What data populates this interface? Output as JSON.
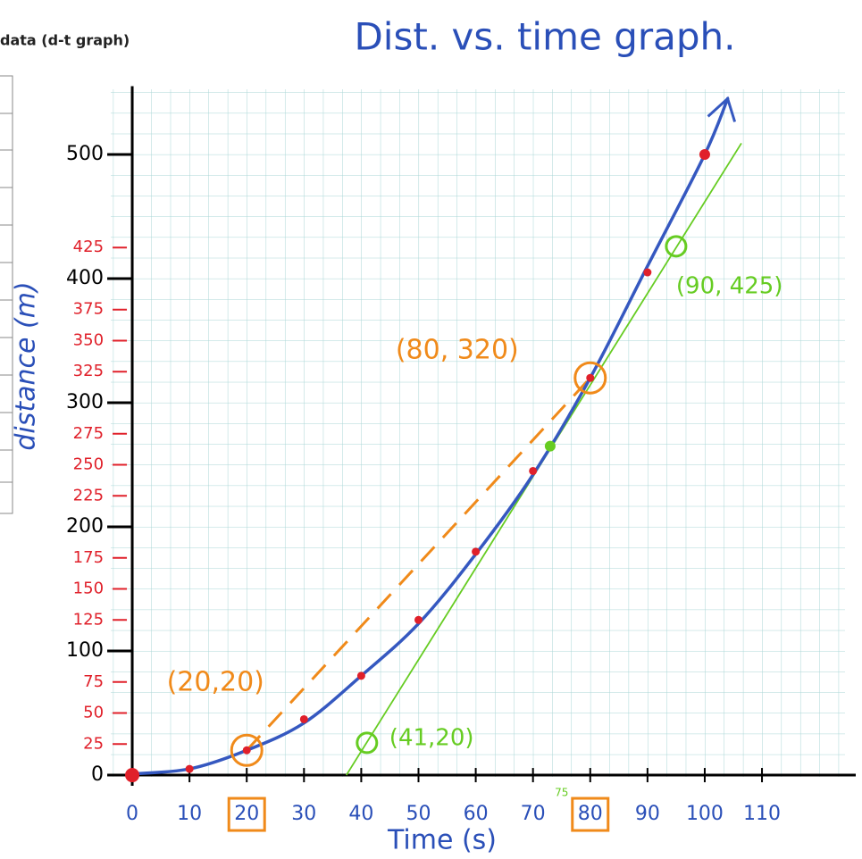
{
  "header": "data (d-t graph)",
  "chart_data": {
    "type": "scatter",
    "title": "Dist. vs. time graph.",
    "x_label": "Time (s)",
    "y_label": "distance (m)",
    "x": [
      0,
      10,
      20,
      30,
      40,
      50,
      60,
      70,
      80,
      90,
      100
    ],
    "values": [
      0,
      5,
      20,
      45,
      80,
      125,
      180,
      245,
      320,
      405,
      500
    ],
    "color": "#e0202a",
    "xlim": [
      -4,
      127
    ],
    "ylim": [
      -5,
      555
    ],
    "xticks": [
      0,
      10,
      20,
      30,
      40,
      50,
      60,
      70,
      80,
      90,
      100,
      110
    ],
    "boxed_xticks": [
      20,
      80
    ],
    "yticks": [
      0,
      100,
      200,
      300,
      400,
      500
    ],
    "y_minor_ticks": [
      25,
      50,
      75,
      125,
      150,
      175,
      225,
      250,
      275,
      325,
      350,
      375,
      425
    ],
    "minor_tick_color": "#e0202a",
    "grid": true,
    "curve": {
      "color": "#3558c0",
      "x": [
        0,
        10,
        20,
        30,
        40,
        50,
        60,
        70,
        80,
        90,
        100,
        104
      ],
      "values": [
        1,
        5,
        20,
        42,
        80,
        122,
        178,
        242,
        320,
        410,
        500,
        545
      ]
    },
    "secant": {
      "color": "#f08a1a",
      "x": [
        20,
        80
      ],
      "values": [
        20,
        320
      ]
    },
    "tangent": {
      "color": "#66cc22",
      "x": [
        37.4,
        106.4
      ],
      "values": [
        0,
        509
      ]
    },
    "tangent_point": {
      "x": 73,
      "y": 265
    },
    "annotations": [
      {
        "text": "(20,20)",
        "x": 20,
        "y": 20,
        "color": "#f08a1a"
      },
      {
        "text": "(80, 320)",
        "x": 80,
        "y": 320,
        "color": "#f08a1a"
      },
      {
        "text": "(41,20)",
        "x": 41,
        "y": 26,
        "color": "#66cc22"
      },
      {
        "text": "(90, 425)",
        "x": 95,
        "y": 426,
        "color": "#66cc22"
      }
    ],
    "note": {
      "text": "75",
      "x": 75
    }
  }
}
